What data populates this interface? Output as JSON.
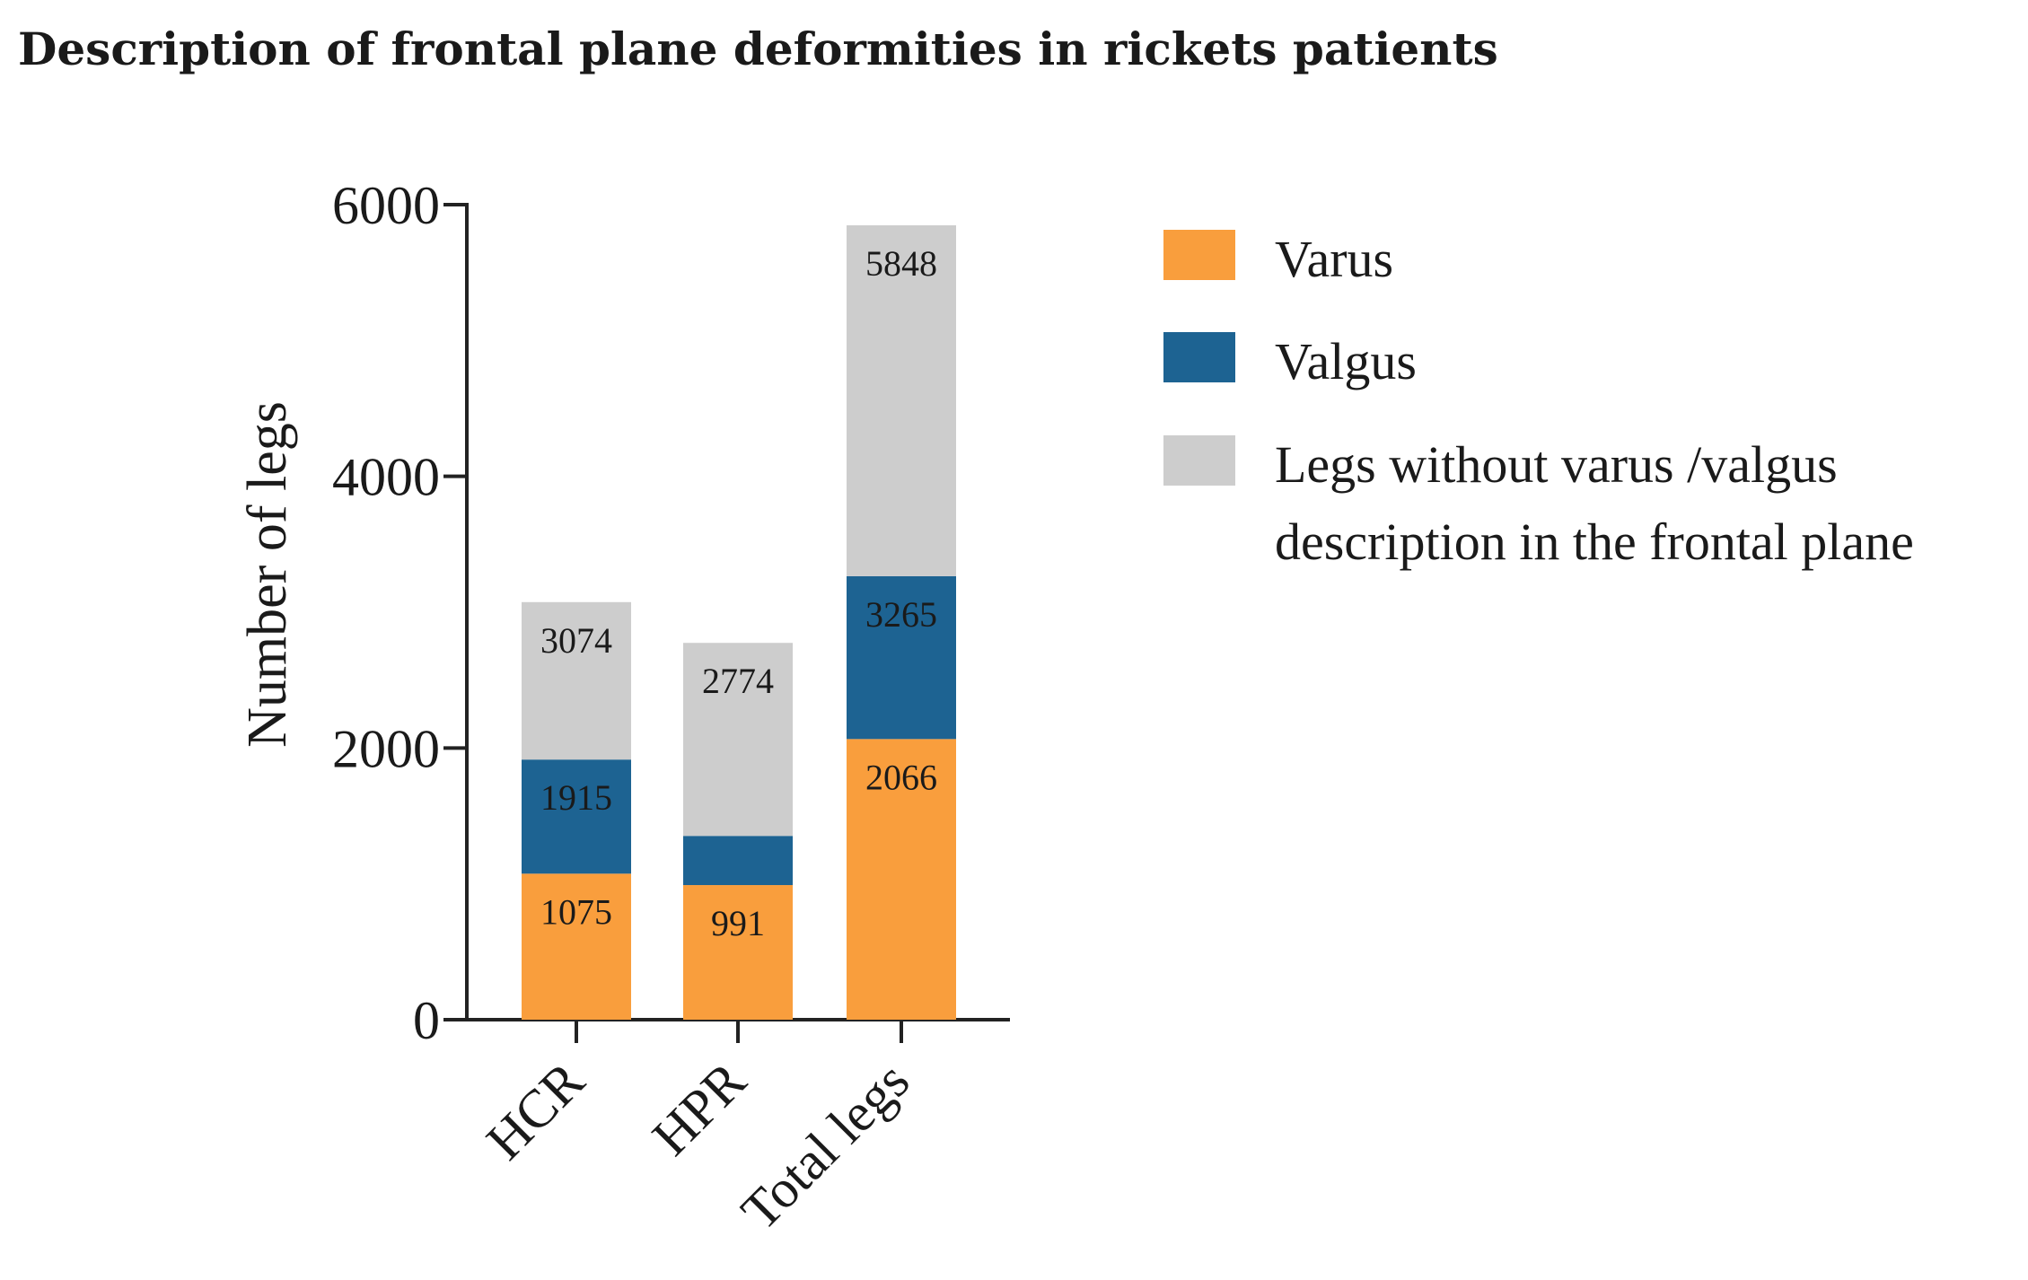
{
  "chart_data": {
    "type": "bar",
    "stacked": true,
    "title": "Description of frontal plane deformities in rickets patients",
    "xlabel": "",
    "ylabel": "Number of legs",
    "ylim": [
      0,
      6000
    ],
    "yticks": [
      "0",
      "2000",
      "4000",
      "6000"
    ],
    "categories": [
      "HCR",
      "HPR",
      "Total legs"
    ],
    "series": [
      {
        "name": "Varus",
        "color": "#f99e3d",
        "values": [
          1075,
          991,
          2066
        ]
      },
      {
        "name": "Valgus",
        "color": "#1d6392",
        "values": [
          840,
          362,
          1199
        ]
      },
      {
        "name": "Legs without varus /valgus description in the frontal plane",
        "color": "#cdcdcd",
        "values": [
          1159,
          1421,
          2583
        ]
      }
    ],
    "data_labels": [
      {
        "category": "HCR",
        "series": "Varus",
        "text": "1075"
      },
      {
        "category": "HCR",
        "series": "Valgus",
        "text": "1915"
      },
      {
        "category": "HCR",
        "series": "Legs without varus /valgus description in the frontal plane",
        "text": "3074"
      },
      {
        "category": "HPR",
        "series": "Varus",
        "text": "991"
      },
      {
        "category": "HPR",
        "series": "Legs without varus /valgus description in the frontal plane",
        "text": "2774"
      },
      {
        "category": "Total legs",
        "series": "Varus",
        "text": "2066"
      },
      {
        "category": "Total legs",
        "series": "Valgus",
        "text": "3265"
      },
      {
        "category": "Total legs",
        "series": "Legs without varus /valgus description in the frontal plane",
        "text": "5848"
      }
    ],
    "legend": {
      "position": "right",
      "items": [
        {
          "lines": [
            "Varus"
          ]
        },
        {
          "lines": [
            "Valgus"
          ]
        },
        {
          "lines": [
            "Legs without varus  /valgus",
            "description in the frontal plane"
          ]
        }
      ]
    }
  }
}
